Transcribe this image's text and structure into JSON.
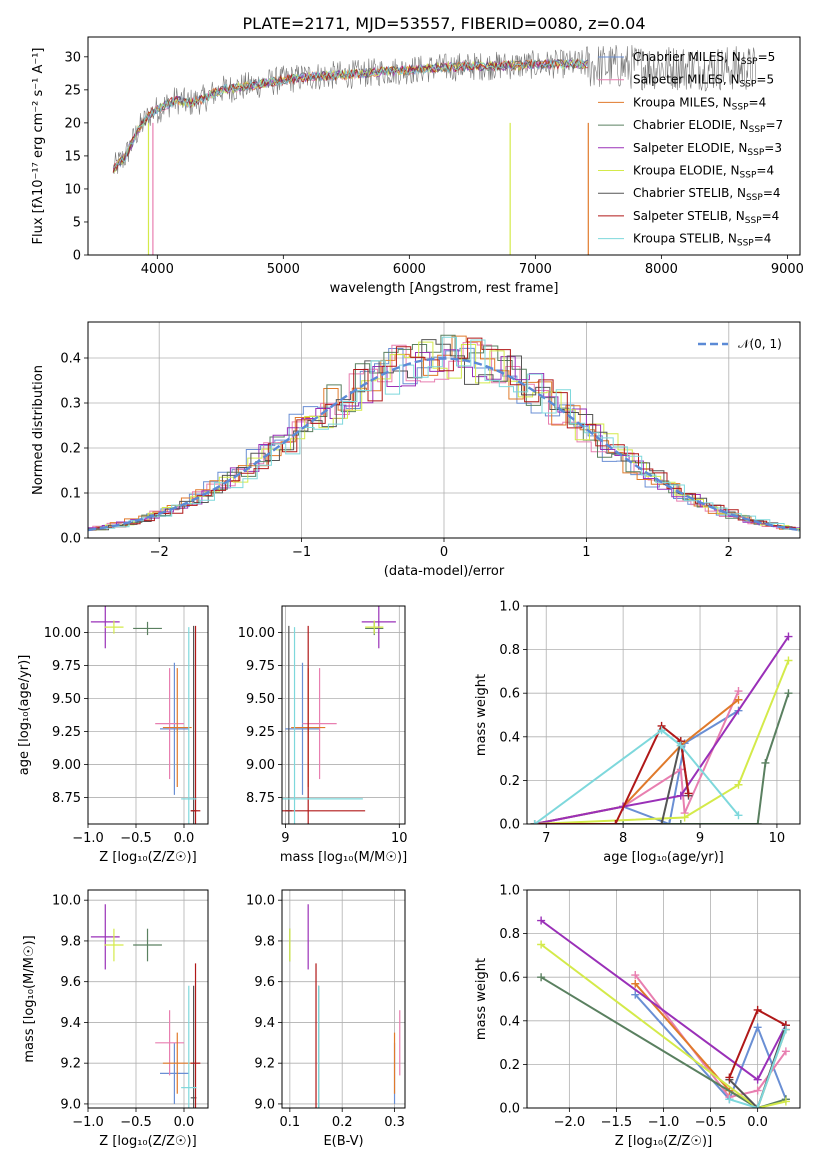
{
  "title": "PLATE=2171, MJD=53557, FIBERID=0080, z=0.04",
  "colors": {
    "Chabrier MILES": "#6a8fd4",
    "Salpeter MILES": "#e87fb0",
    "Kroupa MILES": "#e07a2b",
    "Chabrier ELODIE": "#5a8060",
    "Salpeter ELODIE": "#9a30b8",
    "Kroupa ELODIE": "#d4ea4a",
    "Chabrier STELIB": "#555555",
    "Salpeter STELIB": "#b01818",
    "Kroupa STELIB": "#7ed8dc",
    "data": "#777777",
    "normal": "#5b8ad6"
  },
  "chart_data": [
    {
      "id": "spectrum",
      "type": "line",
      "title": "PLATE=2171, MJD=53557, FIBERID=0080, z=0.04",
      "xlabel": "wavelength [Angstrom, rest frame]",
      "ylabel": "Flux [f_λ 10^-17 erg cm^-2 s^-1 A^-1]",
      "xlim": [
        3450,
        9100
      ],
      "ylim": [
        0,
        33
      ],
      "xticks": [
        4000,
        5000,
        6000,
        7000,
        8000,
        9000
      ],
      "yticks": [
        0,
        5,
        10,
        15,
        20,
        25,
        30
      ],
      "legend": [
        "Chabrier MILES, N_SSP=5",
        "Salpeter MILES, N_SSP=5",
        "Kroupa MILES, N_SSP=4",
        "Chabrier ELODIE, N_SSP=7",
        "Salpeter ELODIE, N_SSP=3",
        "Kroupa ELODIE, N_SSP=4",
        "Chabrier STELIB, N_SSP=4",
        "Salpeter STELIB, N_SSP=4",
        "Kroupa STELIB, N_SSP=4"
      ],
      "legend_position": "right",
      "continuum": {
        "x": [
          3650,
          3750,
          3850,
          3950,
          4050,
          4150,
          4250,
          4350,
          4500,
          4700,
          4850,
          5000,
          5200,
          5400,
          5600,
          5800,
          6000,
          6200,
          6400,
          6600,
          6800,
          7000,
          7200,
          7400
        ],
        "y": [
          13,
          15,
          19,
          21.5,
          22.5,
          23.5,
          23,
          23.5,
          25,
          25.5,
          26,
          26.5,
          27,
          27.2,
          27.4,
          27.8,
          28,
          28.3,
          28.5,
          28.6,
          28.7,
          28.8,
          28.9,
          28.9
        ]
      }
    },
    {
      "id": "residuals",
      "type": "histogram",
      "xlabel": "(data-model)/error",
      "ylabel": "Normed distribution",
      "xlim": [
        -2.5,
        2.5
      ],
      "ylim": [
        0,
        0.48
      ],
      "xticks": [
        -2,
        -1,
        0,
        1,
        2
      ],
      "yticks": [
        0.0,
        0.1,
        0.2,
        0.3,
        0.4
      ],
      "grid": true,
      "legend": [
        "𝒩(0, 1)"
      ],
      "legend_position": "top-right"
    },
    {
      "id": "age-vs-Z",
      "type": "errorbar",
      "xlabel": "Z [log10(Z/Z☉)]",
      "ylabel": "age  [log10(age/yr)]",
      "xlim": [
        -1.0,
        0.25
      ],
      "ylim": [
        8.55,
        10.2
      ],
      "xticks": [
        -1.0,
        -0.5,
        0.0
      ],
      "yticks": [
        8.75,
        9.0,
        9.25,
        9.5,
        9.75,
        10.0
      ],
      "grid": true,
      "points": [
        {
          "model": "Chabrier MILES",
          "x": -0.1,
          "xerr": 0.15,
          "y": 9.27,
          "yerr": 0.5
        },
        {
          "model": "Salpeter MILES",
          "x": -0.15,
          "xerr": 0.15,
          "y": 9.31,
          "yerr": 0.42
        },
        {
          "model": "Kroupa MILES",
          "x": -0.07,
          "xerr": 0.15,
          "y": 9.28,
          "yerr": 0.45
        },
        {
          "model": "Chabrier ELODIE",
          "x": -0.38,
          "xerr": 0.15,
          "y": 10.03,
          "yerr": 0.05
        },
        {
          "model": "Salpeter ELODIE",
          "x": -0.82,
          "xerr": 0.15,
          "y": 10.08,
          "yerr": 0.2
        },
        {
          "model": "Kroupa ELODIE",
          "x": -0.73,
          "xerr": 0.1,
          "y": 10.04,
          "yerr": 0.05
        },
        {
          "model": "Chabrier STELIB",
          "x": 0.1,
          "xerr": 0.03,
          "y": 8.65,
          "yerr": 1.4
        },
        {
          "model": "Salpeter STELIB",
          "x": 0.12,
          "xerr": 0.05,
          "y": 8.65,
          "yerr": 1.4
        },
        {
          "model": "Kroupa STELIB",
          "x": 0.05,
          "xerr": 0.08,
          "y": 8.74,
          "yerr": 1.3
        }
      ]
    },
    {
      "id": "age-vs-mass",
      "type": "errorbar",
      "xlabel": "mass [log10(M/M☉)]",
      "ylabel": "",
      "xlim": [
        8.97,
        10.05
      ],
      "ylim": [
        8.55,
        10.2
      ],
      "xticks": [
        9,
        10
      ],
      "yticks": [
        8.75,
        9.0,
        9.25,
        9.5,
        9.75,
        10.0
      ],
      "grid": true,
      "points": [
        {
          "model": "Chabrier MILES",
          "x": 9.15,
          "xerr": 0.15,
          "y": 9.27,
          "yerr": 0.5
        },
        {
          "model": "Salpeter MILES",
          "x": 9.3,
          "xerr": 0.15,
          "y": 9.31,
          "yerr": 0.42
        },
        {
          "model": "Kroupa MILES",
          "x": 9.2,
          "xerr": 0.15,
          "y": 9.28,
          "yerr": 0.45
        },
        {
          "model": "Chabrier ELODIE",
          "x": 9.78,
          "xerr": 0.08,
          "y": 10.03,
          "yerr": 0.05
        },
        {
          "model": "Salpeter ELODIE",
          "x": 9.82,
          "xerr": 0.15,
          "y": 10.08,
          "yerr": 0.2
        },
        {
          "model": "Kroupa ELODIE",
          "x": 9.78,
          "xerr": 0.08,
          "y": 10.04,
          "yerr": 0.05
        },
        {
          "model": "Chabrier STELIB",
          "x": 9.03,
          "xerr": 0.03,
          "y": 8.65,
          "yerr": 1.4
        },
        {
          "model": "Salpeter STELIB",
          "x": 9.2,
          "xerr": 0.5,
          "y": 8.65,
          "yerr": 1.4
        },
        {
          "model": "Kroupa STELIB",
          "x": 9.08,
          "xerr": 0.6,
          "y": 8.74,
          "yerr": 1.3
        }
      ]
    },
    {
      "id": "massweight-vs-age",
      "type": "line",
      "xlabel": "age  [log10(age/yr)]",
      "ylabel": "mass weight",
      "xlim": [
        6.75,
        10.3
      ],
      "ylim": [
        0,
        1.0
      ],
      "xticks": [
        7,
        8,
        9,
        10
      ],
      "yticks": [
        0.0,
        0.2,
        0.4,
        0.6,
        0.8,
        1.0
      ],
      "grid": true,
      "series": [
        {
          "model": "Chabrier MILES",
          "x": [
            6.85,
            8.0,
            8.6,
            8.8,
            9.5
          ],
          "y": [
            0.0,
            0.08,
            0.0,
            0.37,
            0.52
          ]
        },
        {
          "model": "Salpeter MILES",
          "x": [
            6.85,
            8.0,
            8.75,
            8.8,
            9.5
          ],
          "y": [
            0.0,
            0.08,
            0.25,
            0.05,
            0.61
          ]
        },
        {
          "model": "Kroupa MILES",
          "x": [
            6.85,
            8.0,
            8.75,
            9.5
          ],
          "y": [
            0.0,
            0.08,
            0.36,
            0.57
          ]
        },
        {
          "model": "Chabrier ELODIE",
          "x": [
            6.85,
            8.0,
            8.75,
            9.75,
            9.85,
            10.15
          ],
          "y": [
            0.0,
            0.0,
            0.0,
            0.0,
            0.28,
            0.6
          ]
        },
        {
          "model": "Salpeter ELODIE",
          "x": [
            6.85,
            8.0,
            8.75,
            10.15
          ],
          "y": [
            0.0,
            0.08,
            0.13,
            0.86
          ]
        },
        {
          "model": "Kroupa ELODIE",
          "x": [
            6.85,
            8.8,
            9.5,
            10.15
          ],
          "y": [
            0.0,
            0.03,
            0.18,
            0.75
          ]
        },
        {
          "model": "Chabrier STELIB",
          "x": [
            6.85,
            8.5,
            8.75,
            8.85
          ],
          "y": [
            0.0,
            0.0,
            0.38,
            0.13
          ]
        },
        {
          "model": "Salpeter STELIB",
          "x": [
            6.85,
            7.9,
            8.5,
            8.75,
            8.85
          ],
          "y": [
            0.0,
            0.0,
            0.45,
            0.38,
            0.14
          ]
        },
        {
          "model": "Kroupa STELIB",
          "x": [
            6.85,
            8.5,
            8.75,
            9.5
          ],
          "y": [
            0.0,
            0.43,
            0.36,
            0.04
          ]
        }
      ]
    },
    {
      "id": "mass-vs-Z",
      "type": "errorbar",
      "xlabel": "Z [log10(Z/Z☉)]",
      "ylabel": "mass [log10(M/M☉)]",
      "xlim": [
        -1.0,
        0.25
      ],
      "ylim": [
        8.98,
        10.05
      ],
      "xticks": [
        -1.0,
        -0.5,
        0.0
      ],
      "yticks": [
        9.0,
        9.2,
        9.4,
        9.6,
        9.8,
        10.0
      ],
      "grid": true,
      "points": [
        {
          "model": "Chabrier MILES",
          "x": -0.1,
          "xerr": 0.15,
          "y": 9.15,
          "yerr": 0.15
        },
        {
          "model": "Salpeter MILES",
          "x": -0.15,
          "xerr": 0.15,
          "y": 9.3,
          "yerr": 0.16
        },
        {
          "model": "Kroupa MILES",
          "x": -0.07,
          "xerr": 0.15,
          "y": 9.2,
          "yerr": 0.15
        },
        {
          "model": "Chabrier ELODIE",
          "x": -0.38,
          "xerr": 0.15,
          "y": 9.78,
          "yerr": 0.08
        },
        {
          "model": "Salpeter ELODIE",
          "x": -0.82,
          "xerr": 0.15,
          "y": 9.82,
          "yerr": 0.16
        },
        {
          "model": "Kroupa ELODIE",
          "x": -0.73,
          "xerr": 0.1,
          "y": 9.78,
          "yerr": 0.08
        },
        {
          "model": "Chabrier STELIB",
          "x": 0.1,
          "xerr": 0.03,
          "y": 9.03,
          "yerr": 0.55
        },
        {
          "model": "Salpeter STELIB",
          "x": 0.12,
          "xerr": 0.05,
          "y": 9.2,
          "yerr": 0.49
        },
        {
          "model": "Kroupa STELIB",
          "x": 0.05,
          "xerr": 0.08,
          "y": 9.08,
          "yerr": 0.5
        }
      ]
    },
    {
      "id": "mass-vs-ebv",
      "type": "errorbar",
      "xlabel": "E(B-V)",
      "ylabel": "",
      "xlim": [
        0.085,
        0.32
      ],
      "ylim": [
        8.98,
        10.05
      ],
      "xticks": [
        0.1,
        0.2,
        0.3
      ],
      "yticks": [
        9.0,
        9.2,
        9.4,
        9.6,
        9.8,
        10.0
      ],
      "grid": true,
      "points": [
        {
          "model": "Chabrier MILES",
          "x": 0.3,
          "xerr": 0.0,
          "y": 9.15,
          "yerr": 0.15
        },
        {
          "model": "Salpeter MILES",
          "x": 0.31,
          "xerr": 0.0,
          "y": 9.3,
          "yerr": 0.16
        },
        {
          "model": "Kroupa MILES",
          "x": 0.3,
          "xerr": 0.0,
          "y": 9.2,
          "yerr": 0.15
        },
        {
          "model": "Chabrier ELODIE",
          "x": 0.1,
          "xerr": 0.0,
          "y": 9.78,
          "yerr": 0.08
        },
        {
          "model": "Salpeter ELODIE",
          "x": 0.135,
          "xerr": 0.0,
          "y": 9.82,
          "yerr": 0.16
        },
        {
          "model": "Kroupa ELODIE",
          "x": 0.1,
          "xerr": 0.0,
          "y": 9.78,
          "yerr": 0.08
        },
        {
          "model": "Chabrier STELIB",
          "x": 0.155,
          "xerr": 0.0,
          "y": 9.03,
          "yerr": 0.55
        },
        {
          "model": "Salpeter STELIB",
          "x": 0.15,
          "xerr": 0.0,
          "y": 9.2,
          "yerr": 0.49
        },
        {
          "model": "Kroupa STELIB",
          "x": 0.155,
          "xerr": 0.0,
          "y": 9.08,
          "yerr": 0.5
        }
      ]
    },
    {
      "id": "massweight-vs-Z",
      "type": "line",
      "xlabel": "Z [log10(Z/Z☉)]",
      "ylabel": "mass weight",
      "xlim": [
        -2.45,
        0.45
      ],
      "ylim": [
        0,
        1.0
      ],
      "xticks": [
        -2.0,
        -1.5,
        -1.0,
        -0.5,
        0.0
      ],
      "yticks": [
        0.0,
        0.2,
        0.4,
        0.6,
        0.8,
        1.0
      ],
      "grid": true,
      "series": [
        {
          "model": "Chabrier MILES",
          "x": [
            -1.3,
            -0.3,
            0.0,
            0.3
          ],
          "y": [
            0.52,
            0.04,
            0.37,
            0.04
          ]
        },
        {
          "model": "Salpeter MILES",
          "x": [
            -1.3,
            -0.3,
            0.0,
            0.3
          ],
          "y": [
            0.61,
            0.05,
            0.08,
            0.26
          ]
        },
        {
          "model": "Kroupa MILES",
          "x": [
            -1.3,
            -0.3,
            0.0,
            0.3
          ],
          "y": [
            0.57,
            0.08,
            0.0,
            0.36
          ]
        },
        {
          "model": "Chabrier ELODIE",
          "x": [
            -2.3,
            0.0,
            0.3
          ],
          "y": [
            0.6,
            0.0,
            0.04
          ]
        },
        {
          "model": "Salpeter ELODIE",
          "x": [
            -2.3,
            0.0,
            0.3
          ],
          "y": [
            0.86,
            0.13,
            0.38
          ]
        },
        {
          "model": "Kroupa ELODIE",
          "x": [
            -2.3,
            0.0,
            0.3
          ],
          "y": [
            0.75,
            0.0,
            0.03
          ]
        },
        {
          "model": "Chabrier STELIB",
          "x": [
            -0.3,
            0.0,
            0.3
          ],
          "y": [
            0.13,
            0.0,
            0.38
          ]
        },
        {
          "model": "Salpeter STELIB",
          "x": [
            -0.3,
            0.0,
            0.3
          ],
          "y": [
            0.14,
            0.45,
            0.38
          ]
        },
        {
          "model": "Kroupa STELIB",
          "x": [
            -0.3,
            0.0,
            0.3
          ],
          "y": [
            0.04,
            0.0,
            0.36
          ]
        }
      ]
    }
  ]
}
